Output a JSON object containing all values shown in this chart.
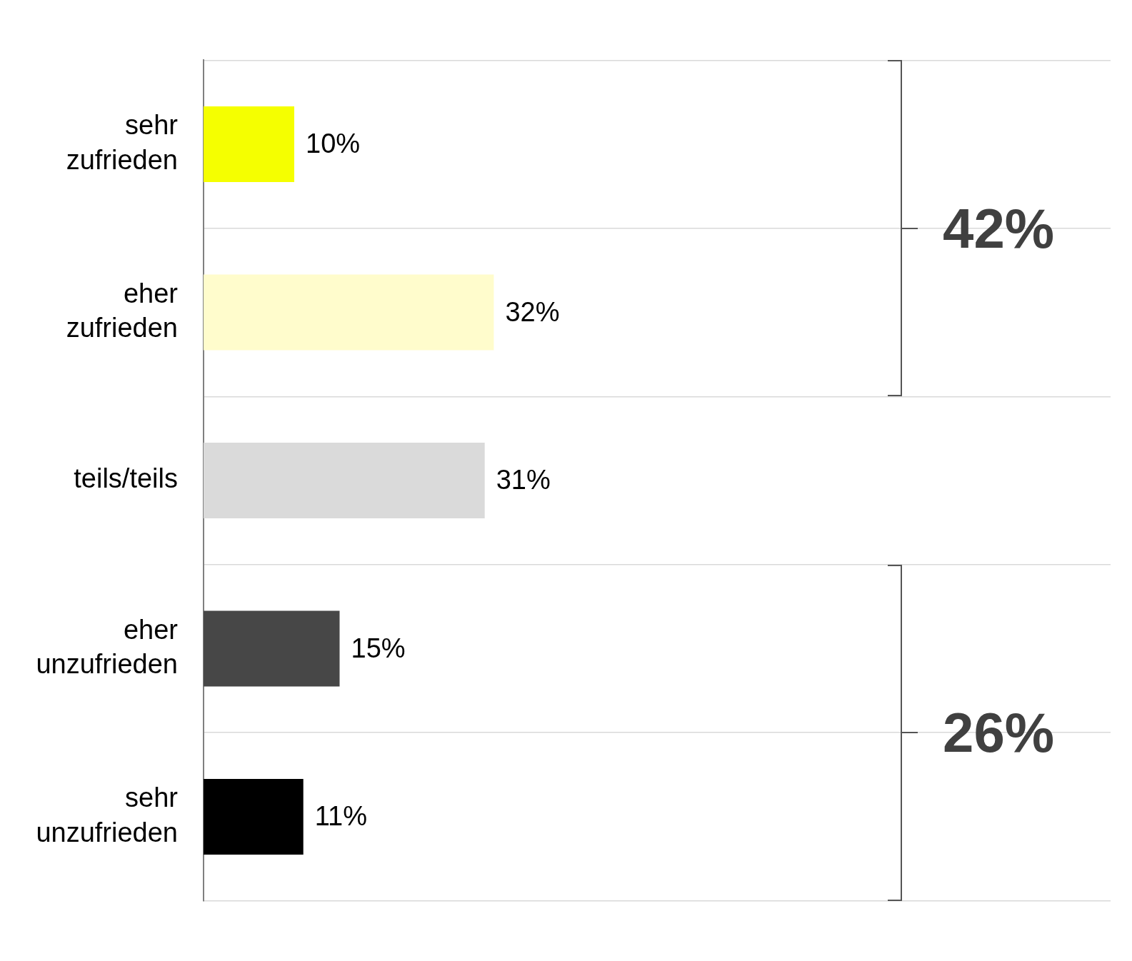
{
  "chart_data": {
    "type": "bar",
    "orientation": "horizontal",
    "categories": [
      "sehr zufrieden",
      "eher zufrieden",
      "teils/teils",
      "eher unzufrieden",
      "sehr unzufrieden"
    ],
    "values": [
      10,
      32,
      31,
      15,
      11
    ],
    "colors": [
      "#f5ff00",
      "#fffccc",
      "#dadada",
      "#474747",
      "#000000"
    ],
    "xlim": [
      0,
      100
    ],
    "tick_labels": "y",
    "grid": "y",
    "data_labels": true,
    "value_labels": [
      "10%",
      "32%",
      "31%",
      "15%",
      "11%"
    ],
    "annotations": [
      "42%",
      "26%"
    ]
  }
}
